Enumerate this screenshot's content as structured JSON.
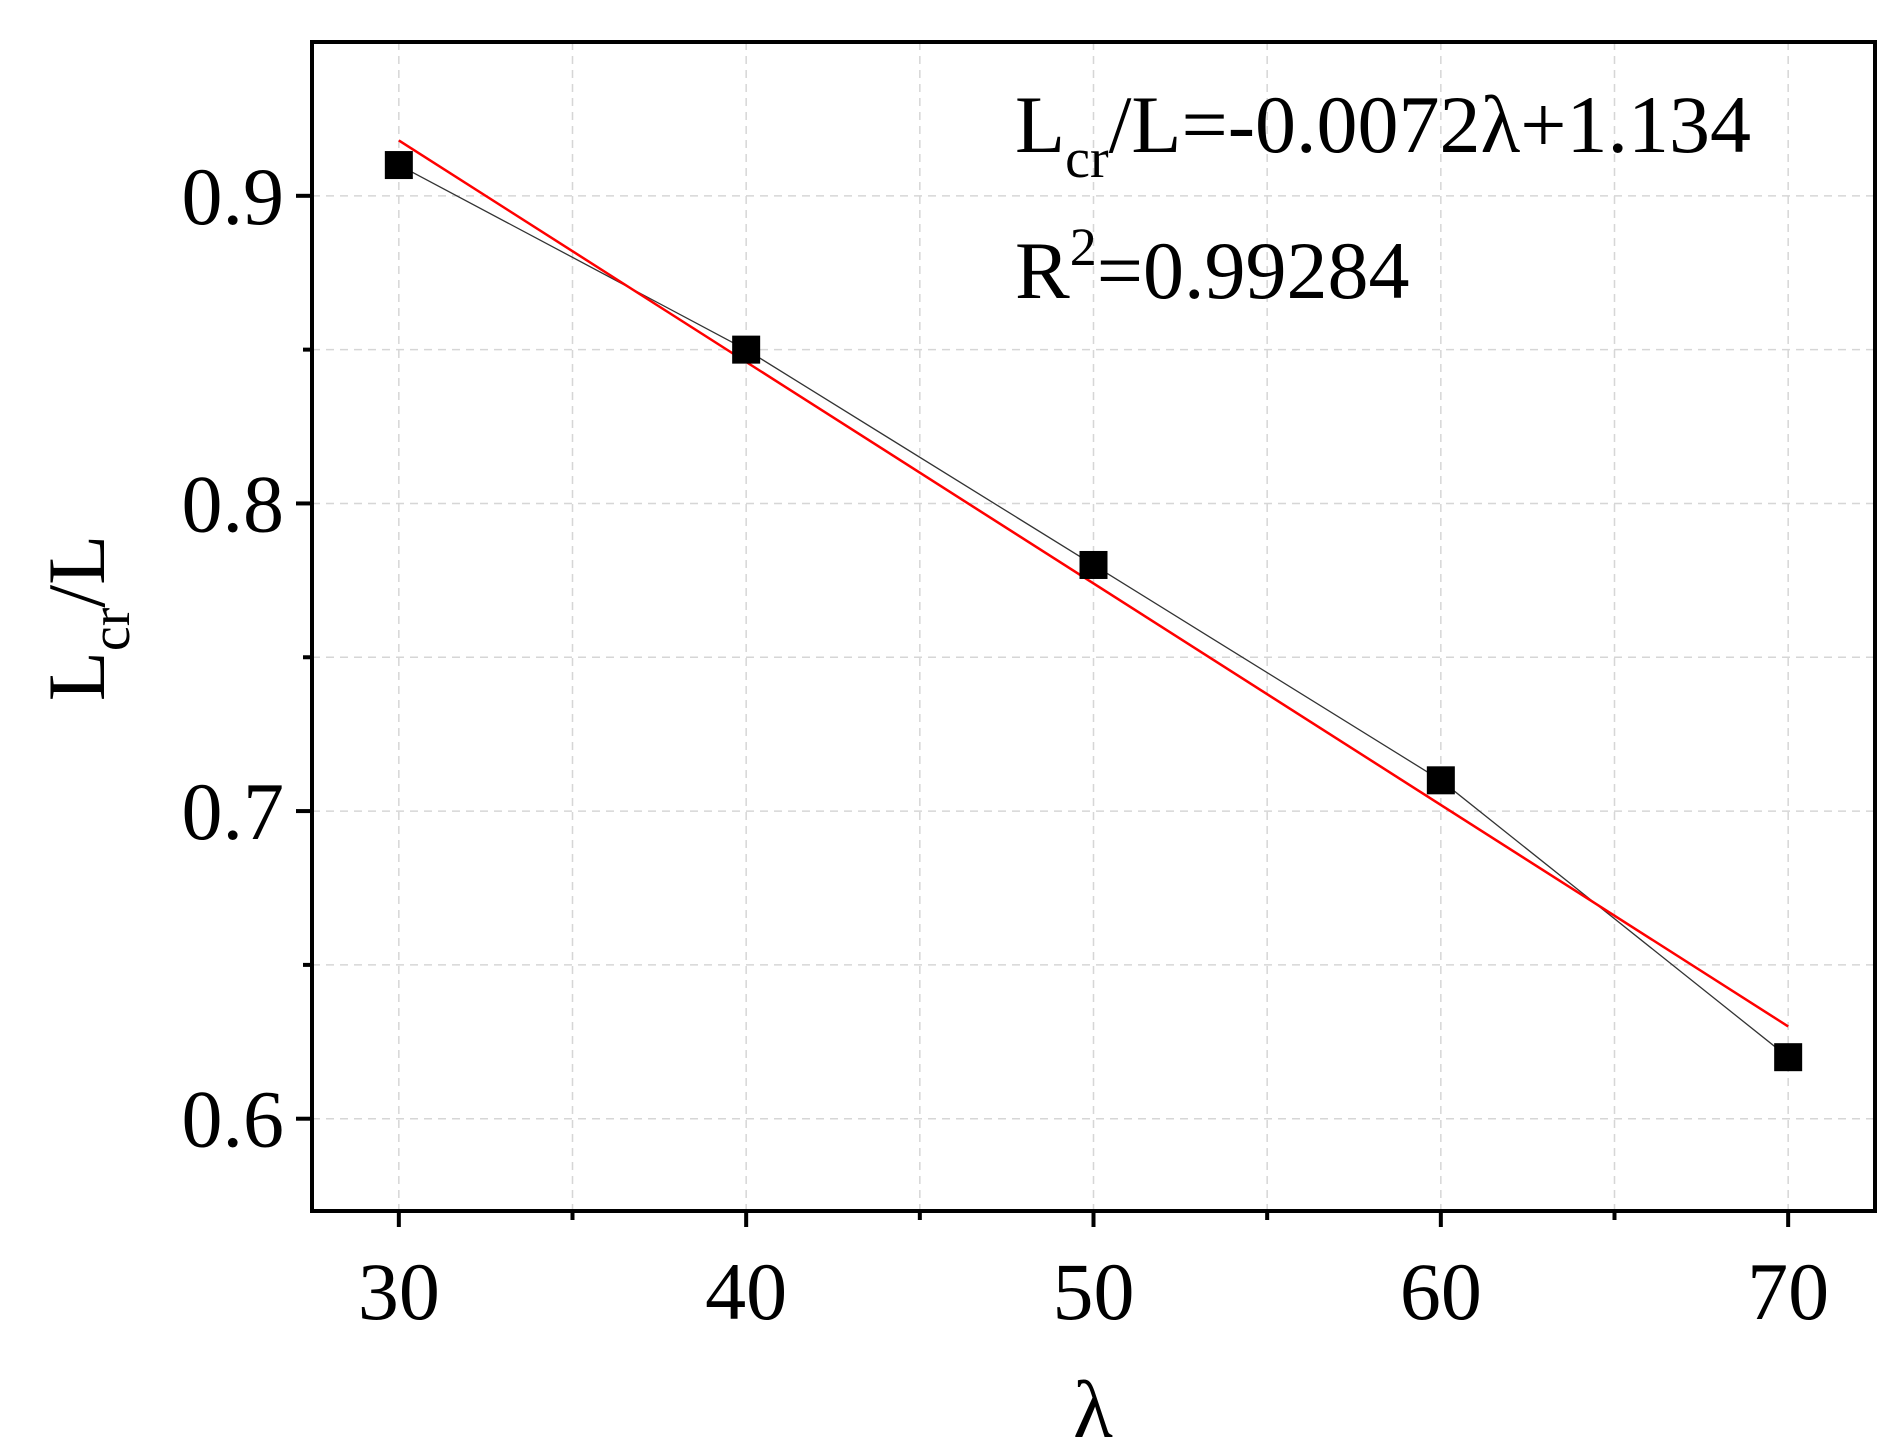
{
  "chart_data": {
    "type": "scatter",
    "x": [
      30,
      40,
      50,
      60,
      70
    ],
    "y": [
      0.91,
      0.85,
      0.78,
      0.71,
      0.62
    ],
    "xlabel": "λ",
    "ylabel": {
      "base": "L",
      "sub": "cr",
      "tail": "/L"
    },
    "xlim": [
      27.5,
      72.5
    ],
    "ylim": [
      0.57,
      0.95
    ],
    "xticks": [
      30,
      40,
      50,
      60,
      70
    ],
    "xtick_labels": [
      "30",
      "40",
      "50",
      "60",
      "70"
    ],
    "yticks": [
      0.6,
      0.7,
      0.8,
      0.9
    ],
    "ytick_labels": [
      "0.6",
      "0.7",
      "0.8",
      "0.9"
    ],
    "grid": true,
    "data_line": true,
    "fit": {
      "slope": -0.0072,
      "intercept": 1.134,
      "x_range": [
        30,
        70
      ]
    },
    "annotations": {
      "equation": {
        "base": "L",
        "sub": "cr",
        "rest": "/L=-0.0072λ+1.134"
      },
      "r2": {
        "base": "R",
        "sup": "2",
        "rest": "=0.99284"
      }
    },
    "colors": {
      "markers": "#000000",
      "data_line": "#333333",
      "fit_line": "#ff0000",
      "grid": "#d6d6d6"
    }
  }
}
